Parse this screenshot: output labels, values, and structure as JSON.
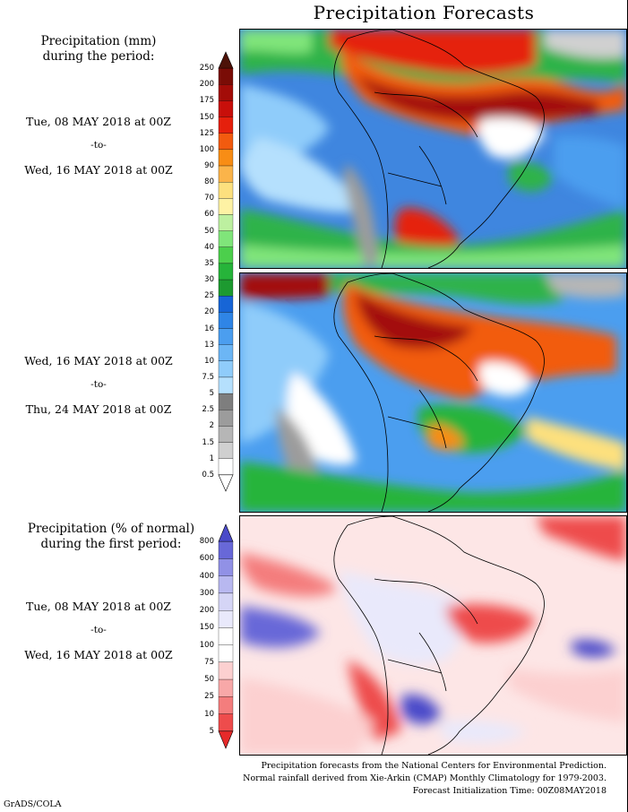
{
  "title": "Precipitation Forecasts",
  "panel1": {
    "heading_line1": "Precipitation (mm)",
    "heading_line2": "during the period:",
    "date_start": "Tue, 08 MAY 2018 at 00Z",
    "sep": "-to-",
    "date_end": "Wed, 16 MAY 2018 at 00Z"
  },
  "panel2": {
    "date_start": "Wed, 16 MAY 2018 at 00Z",
    "sep": "-to-",
    "date_end": "Thu, 24 MAY 2018 at 00Z"
  },
  "panel3": {
    "heading_line1": "Precipitation (% of normal)",
    "heading_line2": "during the first period:",
    "date_start": "Tue, 08 MAY 2018 at 00Z",
    "sep": "-to-",
    "date_end": "Wed, 16 MAY 2018 at 00Z"
  },
  "precip_scale": {
    "labels": [
      "250",
      "200",
      "175",
      "150",
      "125",
      "100",
      "90",
      "80",
      "70",
      "60",
      "50",
      "40",
      "35",
      "30",
      "25",
      "20",
      "16",
      "13",
      "10",
      "7.5",
      "5",
      "2.5",
      "2",
      "1.5",
      "1",
      "0.5"
    ],
    "colors": [
      "#4d1208",
      "#7a0c06",
      "#a30c08",
      "#c80f0a",
      "#e5200c",
      "#f25b0f",
      "#f88d15",
      "#fbb44a",
      "#fde07e",
      "#fef2a4",
      "#bdf0a0",
      "#80e57a",
      "#4ccf4c",
      "#26b43a",
      "#1d9a30",
      "#1765d6",
      "#2f85e6",
      "#4b9eef",
      "#6cb6f5",
      "#8fccfa",
      "#b5e0fd",
      "#7e7e7e",
      "#9c9c9c",
      "#b6b6b6",
      "#d0d0d0",
      "#ffffff"
    ]
  },
  "pct_scale": {
    "labels": [
      "800",
      "600",
      "400",
      "300",
      "200",
      "150",
      "100",
      "75",
      "50",
      "25",
      "10",
      "5"
    ],
    "colors": [
      "#4a4ac9",
      "#6868d8",
      "#9191e6",
      "#b8b8f0",
      "#d5d5f6",
      "#e9e9fb",
      "#ffffff",
      "#ffffff",
      "#fcd0d0",
      "#f8a8a8",
      "#f47d7d",
      "#ee4c4c",
      "#e62a2a"
    ]
  },
  "footer": {
    "line1": "Precipitation forecasts from the National Centers for Environmental Prediction.",
    "line2": "Normal rainfall derived from Xie-Arkin (CMAP) Monthly Climatology for 1979-2003.",
    "line3": "Forecast Initialization Time: 00Z08MAY2018"
  },
  "credit": "GrADS/COLA"
}
